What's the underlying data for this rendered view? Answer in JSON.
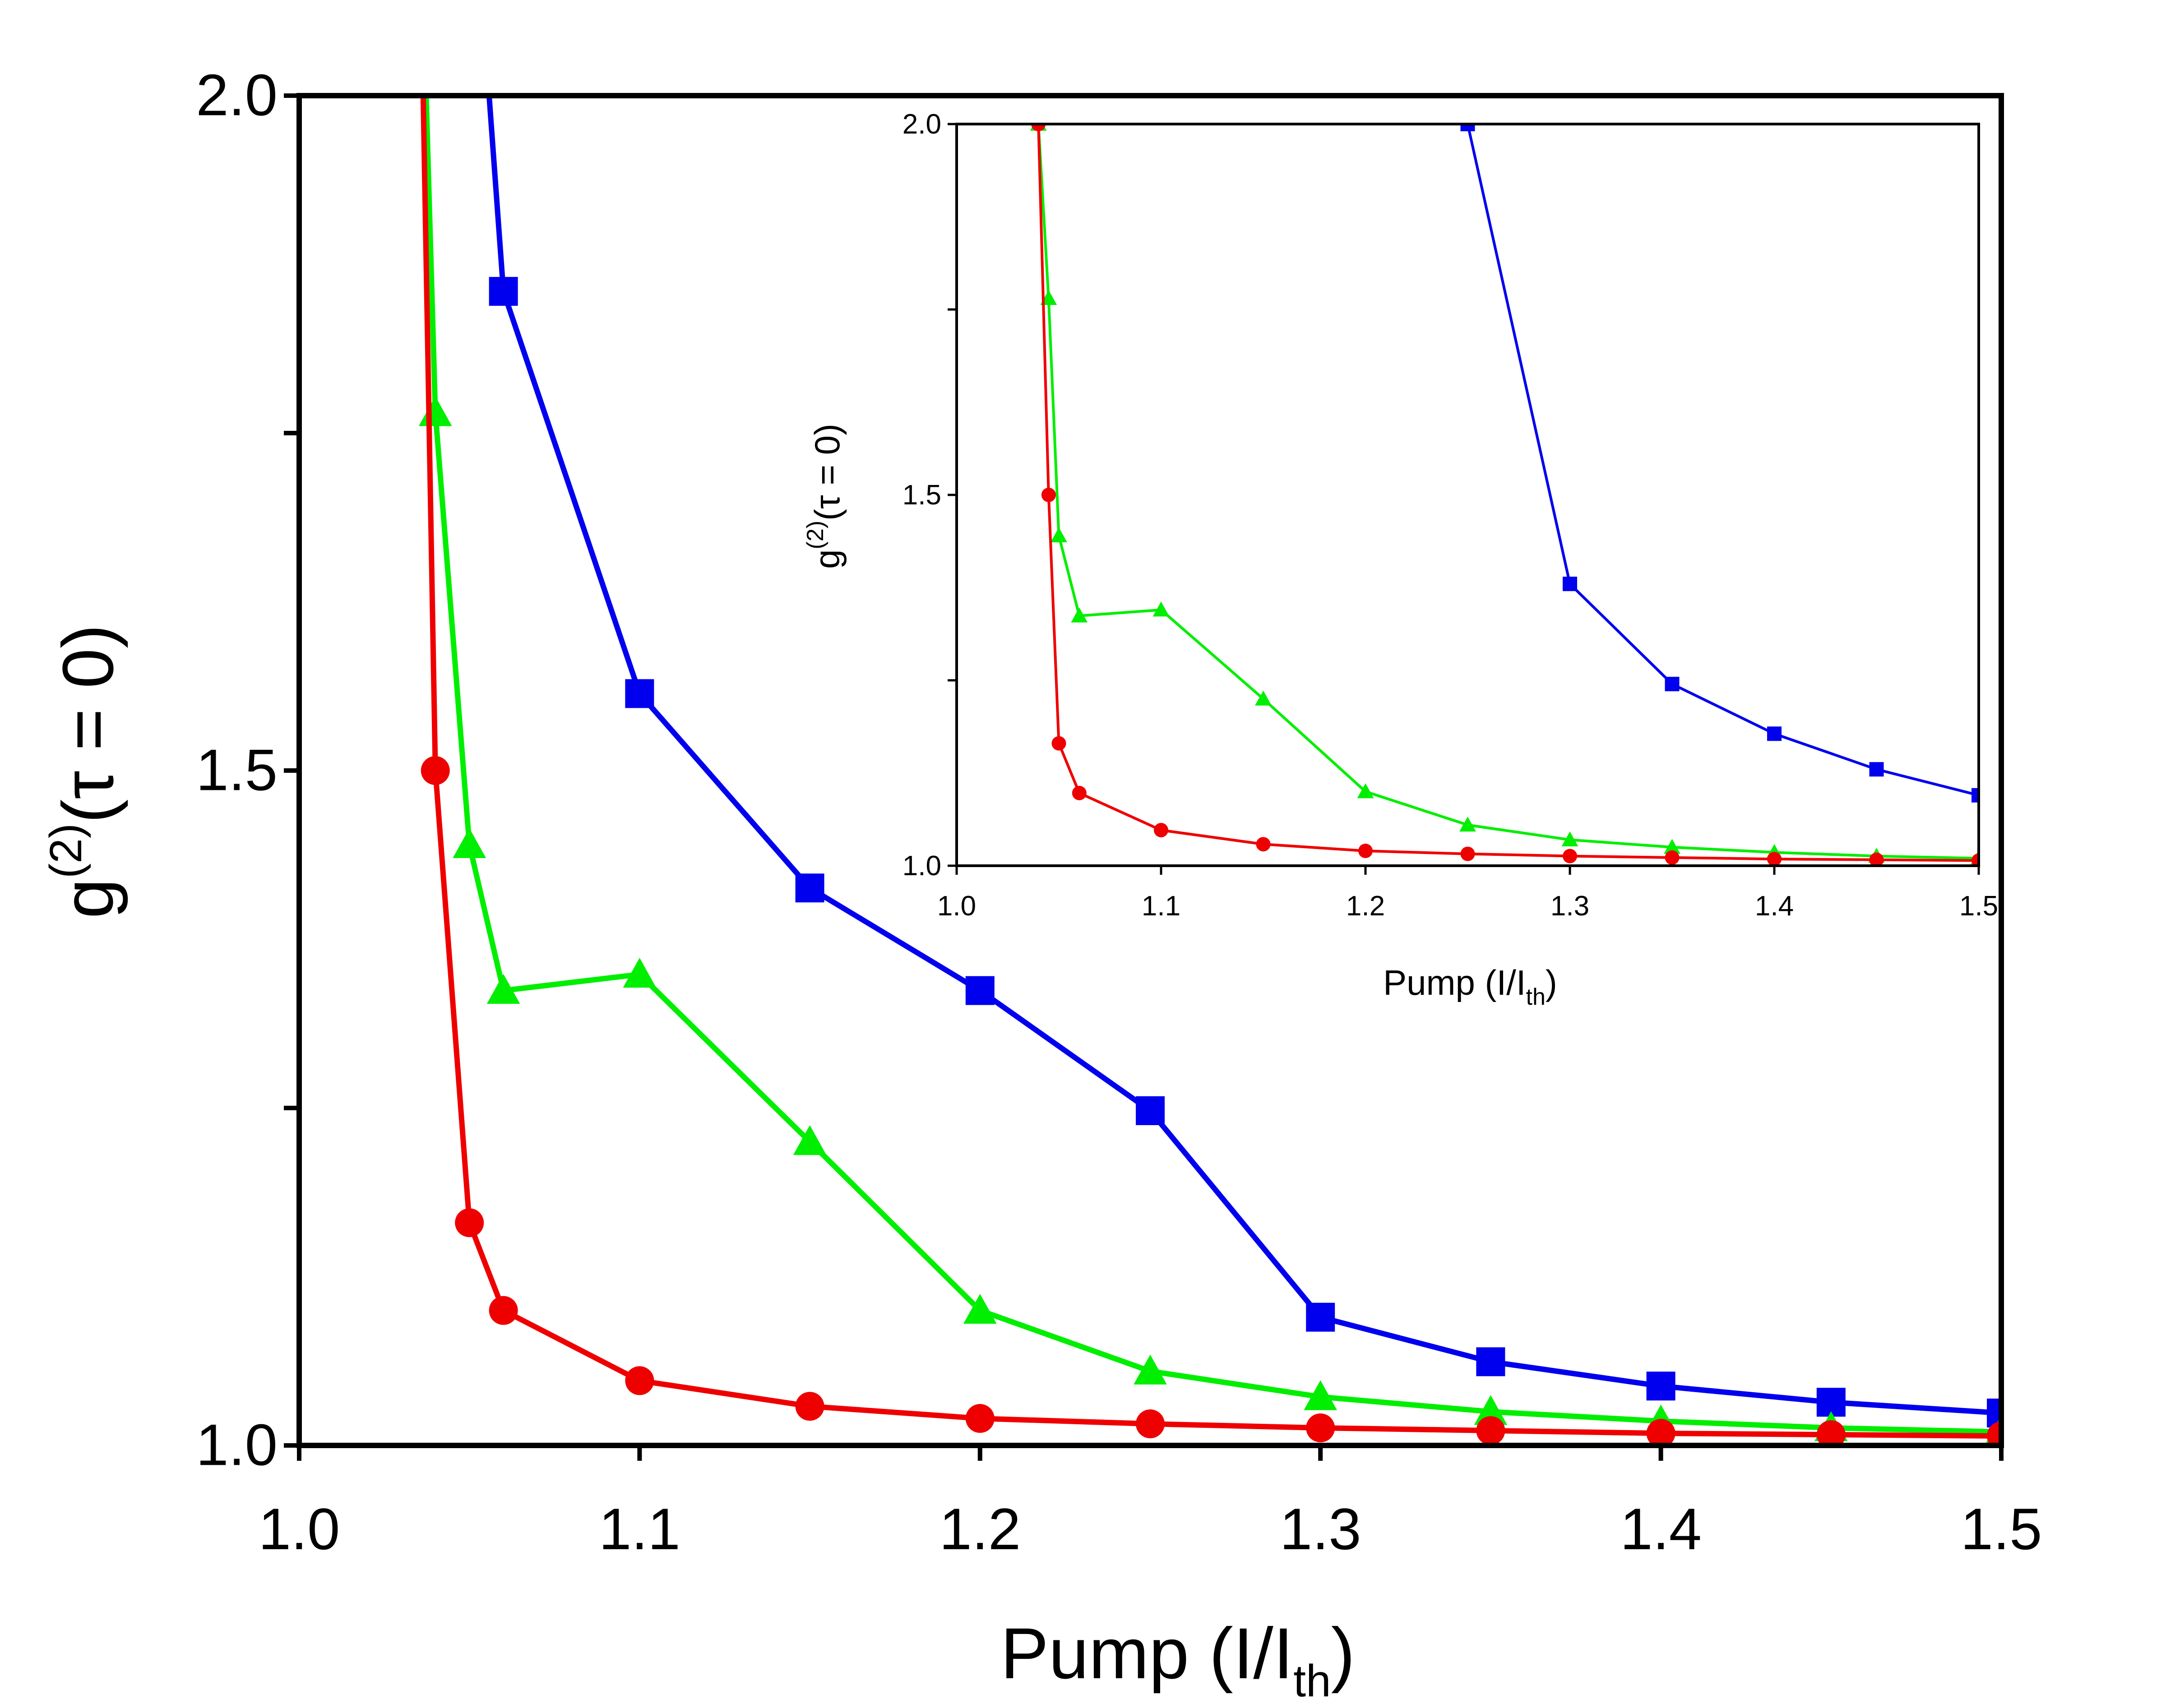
{
  "chart_data": {
    "type": "line",
    "xlabel": "Pump (I/I",
    "xlabel_sub": "th",
    "xlabel_close": ")",
    "ylabel": "g",
    "ylabel_sup": "(2)",
    "ylabel_rest": "(τ = 0)",
    "main": {
      "xlim": [
        1.0,
        1.5
      ],
      "ylim": [
        1.0,
        2.0
      ],
      "xticks": [
        1.0,
        1.1,
        1.2,
        1.3,
        1.4,
        1.5
      ],
      "xtick_labels": [
        "1.0",
        "1.1",
        "1.2",
        "1.3",
        "1.4",
        "1.5"
      ],
      "yticks": [
        1.0,
        1.25,
        1.5,
        1.75,
        2.0
      ],
      "ytick_labels": [
        "1.0",
        "",
        "1.5",
        "",
        "2.0"
      ]
    },
    "inset": {
      "xlim": [
        1.0,
        1.5
      ],
      "ylim": [
        1.0,
        2.0
      ],
      "xticks": [
        1.0,
        1.1,
        1.2,
        1.3,
        1.4,
        1.5
      ],
      "xtick_labels": [
        "1.0",
        "1.1",
        "1.2",
        "1.3",
        "1.4",
        "1.5"
      ],
      "yticks": [
        1.0,
        1.25,
        1.5,
        1.75,
        2.0
      ],
      "ytick_labels": [
        "1.0",
        "",
        "1.5",
        "",
        "2.0"
      ]
    },
    "series": [
      {
        "name": "blue-squares",
        "color": "#0000ee",
        "marker": "square",
        "main_x": [
          1.05,
          1.06,
          1.1,
          1.15,
          1.2,
          1.25,
          1.3,
          1.35,
          1.4,
          1.45,
          1.5
        ],
        "main_y": [
          2.2,
          1.855,
          1.557,
          1.413,
          1.337,
          1.248,
          1.095,
          1.062,
          1.044,
          1.032,
          1.024
        ],
        "inset_x": [
          1.25,
          1.3,
          1.35,
          1.4,
          1.45,
          1.5
        ],
        "inset_y": [
          2.0,
          1.38,
          1.245,
          1.178,
          1.13,
          1.095
        ]
      },
      {
        "name": "green-triangles",
        "color": "#00ee00",
        "marker": "triangle",
        "main_x": [
          1.035,
          1.04,
          1.05,
          1.06,
          1.1,
          1.15,
          1.2,
          1.25,
          1.3,
          1.35,
          1.4,
          1.45,
          1.5
        ],
        "main_y": [
          2.2,
          1.765,
          1.445,
          1.337,
          1.349,
          1.225,
          1.1,
          1.055,
          1.036,
          1.025,
          1.018,
          1.013,
          1.01
        ],
        "inset_x": [
          1.04,
          1.045,
          1.05,
          1.06,
          1.1,
          1.15,
          1.2,
          1.25,
          1.3,
          1.35,
          1.4,
          1.45,
          1.5
        ],
        "inset_y": [
          2.0,
          1.765,
          1.445,
          1.337,
          1.345,
          1.225,
          1.1,
          1.055,
          1.035,
          1.025,
          1.018,
          1.013,
          1.01
        ]
      },
      {
        "name": "red-circles",
        "color": "#ee0000",
        "marker": "circle",
        "main_x": [
          1.035,
          1.04,
          1.05,
          1.06,
          1.1,
          1.15,
          1.2,
          1.25,
          1.3,
          1.35,
          1.4,
          1.45,
          1.5
        ],
        "main_y": [
          2.2,
          1.5,
          1.165,
          1.1,
          1.048,
          1.029,
          1.02,
          1.016,
          1.013,
          1.011,
          1.009,
          1.008,
          1.007
        ],
        "inset_x": [
          1.04,
          1.045,
          1.05,
          1.06,
          1.1,
          1.15,
          1.2,
          1.25,
          1.3,
          1.35,
          1.4,
          1.45,
          1.5
        ],
        "inset_y": [
          2.0,
          1.5,
          1.165,
          1.098,
          1.048,
          1.029,
          1.02,
          1.016,
          1.013,
          1.011,
          1.009,
          1.008,
          1.007
        ]
      }
    ]
  }
}
